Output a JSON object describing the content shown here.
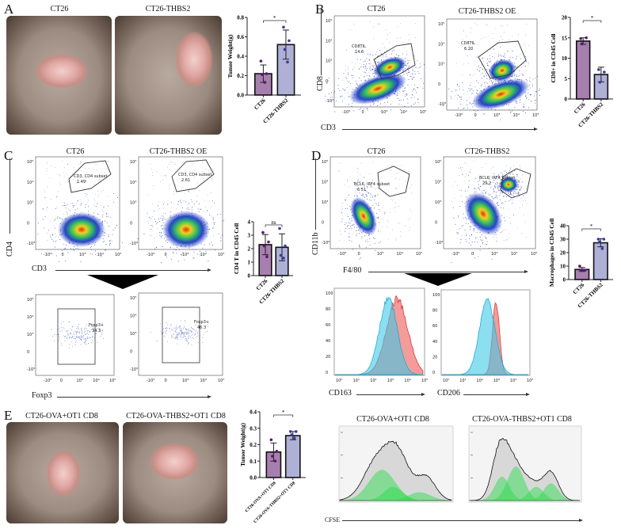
{
  "panels": {
    "A": {
      "label": "A",
      "photos": [
        "CT26",
        "CT26-THBS2"
      ]
    },
    "B": {
      "label": "B",
      "plots": [
        "CT26",
        "CT26-THBS2 OE"
      ],
      "gates": [
        {
          "name": "CD8TIL",
          "value": "14.6"
        },
        {
          "name": "CD8TIL",
          "value": "6.20"
        }
      ],
      "ylabel": "CD8",
      "xlabel": "CD3"
    },
    "C": {
      "label": "C",
      "plots": [
        "CT26",
        "CT26-THBS2 OE"
      ],
      "gates": [
        {
          "name": "CD3, CD4 subset",
          "value": "1.49"
        },
        {
          "name": "CD3, CD4 subset",
          "value": "2.61"
        }
      ],
      "ylabel": "CD4",
      "xlabel": "CD3",
      "sub_gates": [
        {
          "name": "Foxp3+",
          "value": "34.3"
        },
        {
          "name": "Foxp3+",
          "value": "46.3"
        }
      ],
      "sub_xlabel": "Foxp3"
    },
    "D": {
      "label": "D",
      "plots": [
        "CT26",
        "CT26-THBS2"
      ],
      "gates": [
        {
          "name": "BCL6, IRF4 subset",
          "value": "6.51"
        },
        {
          "name": "BCL6, IRF4 subset",
          "value": "29.2"
        }
      ],
      "ylabel": "CD11b",
      "xlabel": "F4/80",
      "hist_xlabels": [
        "CD163",
        "CD206"
      ],
      "hist_colors": {
        "control": "#3fc8e8",
        "thbs2": "#f07070"
      }
    },
    "E": {
      "label": "E",
      "photos": [
        "CT26-OVA+OT1 CD8",
        "CT26-OVA-THBS2+OT1 CD8"
      ],
      "hist_titles": [
        "CT26-OVA+OT1 CD8",
        "CT26-OVA-THBS2+OT1 CD8"
      ],
      "hist_xlabel": "CFSE",
      "hist_color": "#22dd44"
    }
  },
  "flow_ticks": {
    "x": [
      "-10³",
      "0",
      "10³",
      "10⁴",
      "10⁵"
    ],
    "y": [
      "10⁵",
      "10⁴",
      "10³",
      "0",
      "-10³"
    ],
    "hist_y": [
      "100",
      "80",
      "60",
      "40",
      "20",
      "0"
    ],
    "hist_x": [
      "10⁰",
      "10¹",
      "10²",
      "10³",
      "10⁴",
      "10⁵"
    ]
  },
  "colors": {
    "bar_ct26": "#a77fae",
    "bar_thbs2": "#aeb0d6",
    "dot_ct26": "#5a1a6a",
    "dot_thbs2": "#3a3aa0"
  },
  "chart_data": [
    {
      "id": "A",
      "type": "bar",
      "categories": [
        "CT26",
        "CT26-THBS2"
      ],
      "ylabel": "Tumor Weight(g)",
      "ylim": [
        0,
        0.8
      ],
      "yticks": [
        "0.0",
        "0.2",
        "0.4",
        "0.6",
        "0.8"
      ],
      "values": [
        0.22,
        0.52
      ],
      "sd": [
        0.09,
        0.15
      ],
      "points": [
        [
          0.35,
          0.22,
          0.21,
          0.13
        ],
        [
          0.7,
          0.56,
          0.47,
          0.34
        ]
      ],
      "significance": "*"
    },
    {
      "id": "B",
      "type": "bar",
      "categories": [
        "CT26",
        "CT26-THBS2"
      ],
      "ylabel": "CD8+ in CD45 Cell",
      "ylim": [
        0,
        20
      ],
      "yticks": [
        "0",
        "5",
        "10",
        "15",
        "20"
      ],
      "values": [
        14.2,
        6.0
      ],
      "sd": [
        0.8,
        1.8
      ],
      "points": [
        [
          14.8,
          15.0,
          13.5
        ],
        [
          7.2,
          6.6,
          4.1
        ]
      ],
      "significance": "*"
    },
    {
      "id": "C",
      "type": "bar",
      "categories": [
        "CT26",
        "CT26-THBS2"
      ],
      "ylabel": "CD4 T in CD45 Cell",
      "ylim": [
        0,
        4
      ],
      "yticks": [
        "0",
        "1",
        "2",
        "3",
        "4"
      ],
      "values": [
        2.3,
        2.1
      ],
      "sd": [
        0.75,
        1.0
      ],
      "points": [
        [
          3.2,
          2.5,
          2.2,
          1.4
        ],
        [
          3.5,
          2.2,
          1.5,
          1.3
        ]
      ],
      "significance": "ns"
    },
    {
      "id": "D",
      "type": "bar",
      "categories": [
        "CT26",
        "CT26-THBS2"
      ],
      "ylabel": "Macrophages in CD45 Cell",
      "ylim": [
        0,
        40
      ],
      "yticks": [
        "0",
        "10",
        "20",
        "30",
        "40"
      ],
      "values": [
        7.5,
        27.3
      ],
      "sd": [
        1.5,
        3.0
      ],
      "points": [
        [
          10,
          7,
          7,
          7
        ],
        [
          30,
          30,
          28,
          23
        ]
      ],
      "significance": "*"
    },
    {
      "id": "E",
      "type": "bar",
      "categories": [
        "CT26-OVA+OT1 CD8",
        "CT26-OVA-THBS2+OT1 CD8"
      ],
      "ylabel": "Tumor Weight(g)",
      "ylim": [
        0,
        0.4
      ],
      "yticks": [
        "0.0",
        "0.1",
        "0.2",
        "0.3",
        "0.4"
      ],
      "values": [
        0.155,
        0.255
      ],
      "sd": [
        0.055,
        0.025
      ],
      "points": [
        [
          0.23,
          0.16,
          0.13,
          0.1
        ],
        [
          0.28,
          0.28,
          0.26,
          0.24
        ]
      ],
      "significance": "*"
    }
  ]
}
